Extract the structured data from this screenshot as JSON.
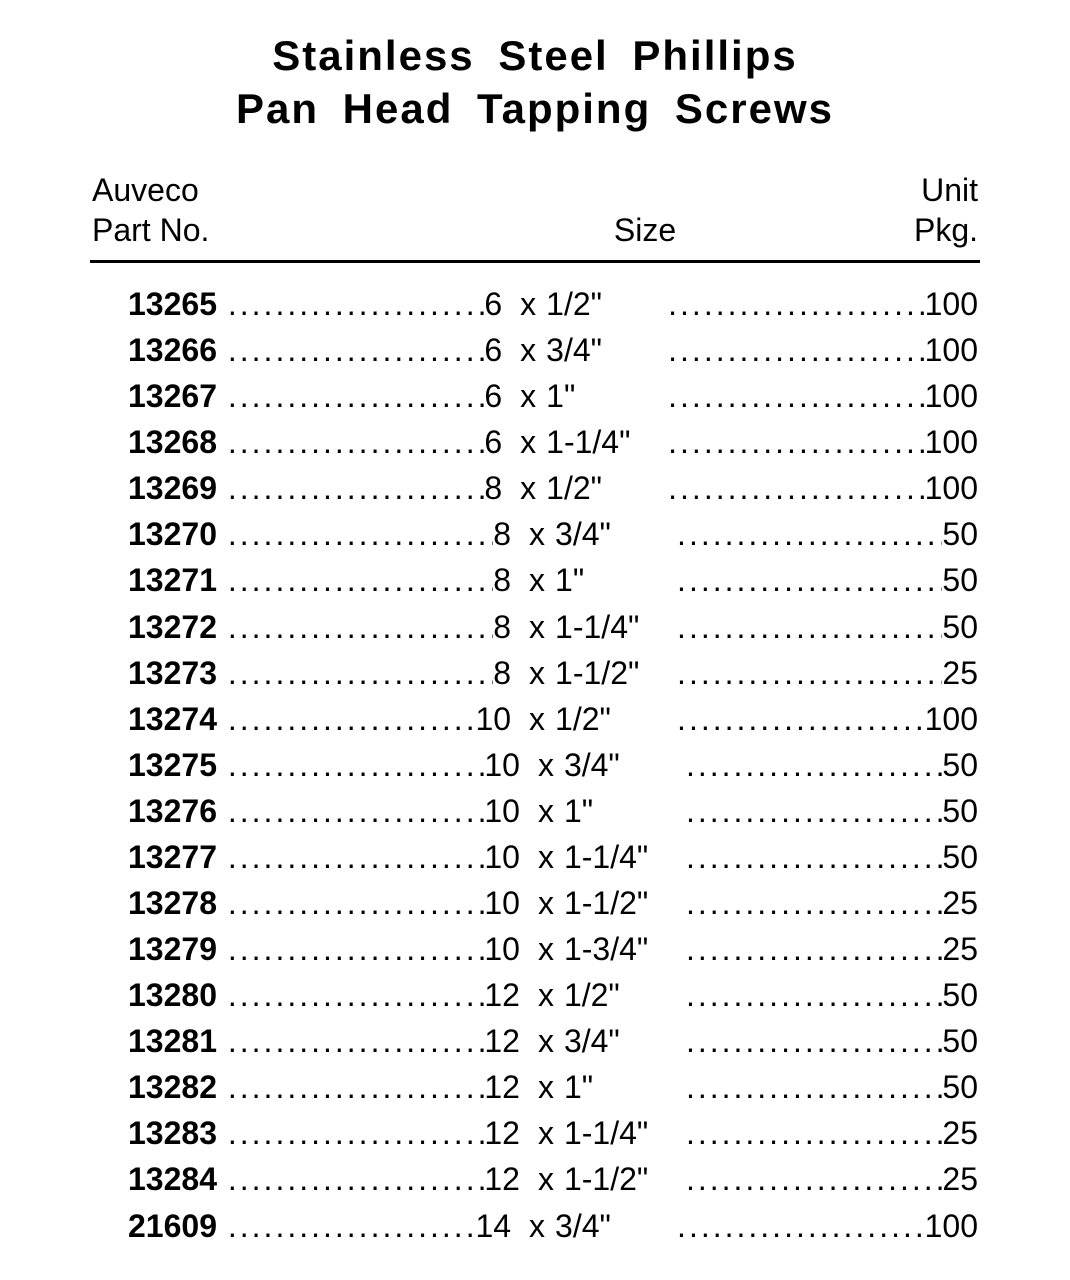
{
  "title_line1": "Stainless  Steel  Phillips",
  "title_line2": "Pan  Head  Tapping  Screws",
  "headers": {
    "left_line1": "Auveco",
    "left_line2": "Part No.",
    "center": "Size",
    "right_line1": "Unit",
    "right_line2": "Pkg."
  },
  "table": {
    "type": "table",
    "columns": [
      "Auveco Part No.",
      "Size",
      "Unit Pkg."
    ],
    "background_color": "#ffffff",
    "text_color": "#000000",
    "divider_color": "#000000",
    "divider_width": 3,
    "title_fontsize": 42,
    "header_fontsize": 32,
    "body_fontsize": 32,
    "partno_fontweight": "bold",
    "value_fontweight": "normal",
    "leader_char": ".",
    "rows": [
      {
        "part": "13265",
        "size_a": "6",
        "size_b": "1/2\"",
        "pkg": "100"
      },
      {
        "part": "13266",
        "size_a": "6",
        "size_b": "3/4\"",
        "pkg": "100"
      },
      {
        "part": "13267",
        "size_a": "6",
        "size_b": "1\"",
        "pkg": "100"
      },
      {
        "part": "13268",
        "size_a": "6",
        "size_b": "1-1/4\"",
        "pkg": "100"
      },
      {
        "part": "13269",
        "size_a": "8",
        "size_b": "1/2\"",
        "pkg": "100"
      },
      {
        "part": "13270",
        "size_a": "8",
        "size_b": "3/4\"",
        "pkg": "50"
      },
      {
        "part": "13271",
        "size_a": "8",
        "size_b": "1\"",
        "pkg": "50"
      },
      {
        "part": "13272",
        "size_a": "8",
        "size_b": "1-1/4\"",
        "pkg": "50"
      },
      {
        "part": "13273",
        "size_a": "8",
        "size_b": "1-1/2\"",
        "pkg": "25"
      },
      {
        "part": "13274",
        "size_a": "10",
        "size_b": "1/2\"",
        "pkg": "100"
      },
      {
        "part": "13275",
        "size_a": "10",
        "size_b": "3/4\"",
        "pkg": "50"
      },
      {
        "part": "13276",
        "size_a": "10",
        "size_b": "1\"",
        "pkg": "50"
      },
      {
        "part": "13277",
        "size_a": "10",
        "size_b": "1-1/4\"",
        "pkg": "50"
      },
      {
        "part": "13278",
        "size_a": "10",
        "size_b": "1-1/2\"",
        "pkg": "25"
      },
      {
        "part": "13279",
        "size_a": "10",
        "size_b": "1-3/4\"",
        "pkg": "25"
      },
      {
        "part": "13280",
        "size_a": "12",
        "size_b": "1/2\"",
        "pkg": "50"
      },
      {
        "part": "13281",
        "size_a": "12",
        "size_b": "3/4\"",
        "pkg": "50"
      },
      {
        "part": "13282",
        "size_a": "12",
        "size_b": "1\"",
        "pkg": "50"
      },
      {
        "part": "13283",
        "size_a": "12",
        "size_b": "1-1/4\"",
        "pkg": "25"
      },
      {
        "part": "13284",
        "size_a": "12",
        "size_b": "1-1/2\"",
        "pkg": "25"
      },
      {
        "part": "21609",
        "size_a": "14",
        "size_b": "3/4\"",
        "pkg": "100"
      }
    ]
  }
}
